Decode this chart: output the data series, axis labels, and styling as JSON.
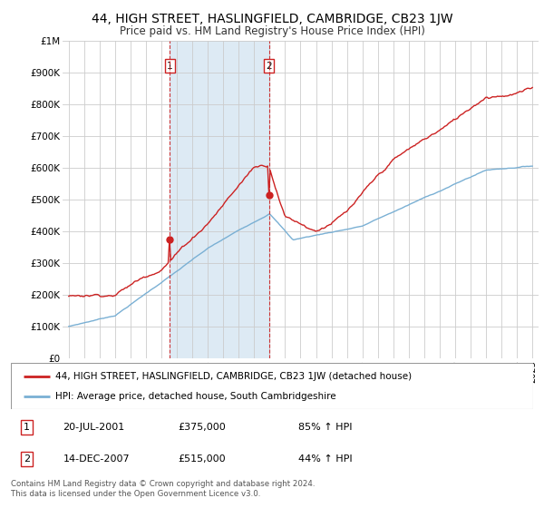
{
  "title": "44, HIGH STREET, HASLINGFIELD, CAMBRIDGE, CB23 1JW",
  "subtitle": "Price paid vs. HM Land Registry's House Price Index (HPI)",
  "legend_line1": "44, HIGH STREET, HASLINGFIELD, CAMBRIDGE, CB23 1JW (detached house)",
  "legend_line2": "HPI: Average price, detached house, South Cambridgeshire",
  "marker1_date": "20-JUL-2001",
  "marker1_price": 375000,
  "marker1_label": "1",
  "marker1_pct": "85% ↑ HPI",
  "marker2_date": "14-DEC-2007",
  "marker2_price": 515000,
  "marker2_label": "2",
  "marker2_pct": "44% ↑ HPI",
  "marker1_x": 2001.55,
  "marker2_x": 2007.95,
  "footer": "Contains HM Land Registry data © Crown copyright and database right 2024.\nThis data is licensed under the Open Government Licence v3.0.",
  "hpi_color": "#7ab0d4",
  "price_color": "#cc2222",
  "marker_color": "#cc2222",
  "bg_color": "#ddeaf4",
  "plot_bg": "#ffffff",
  "ylim": [
    0,
    1000000
  ],
  "xlim_start": 1994.6,
  "xlim_end": 2025.4
}
